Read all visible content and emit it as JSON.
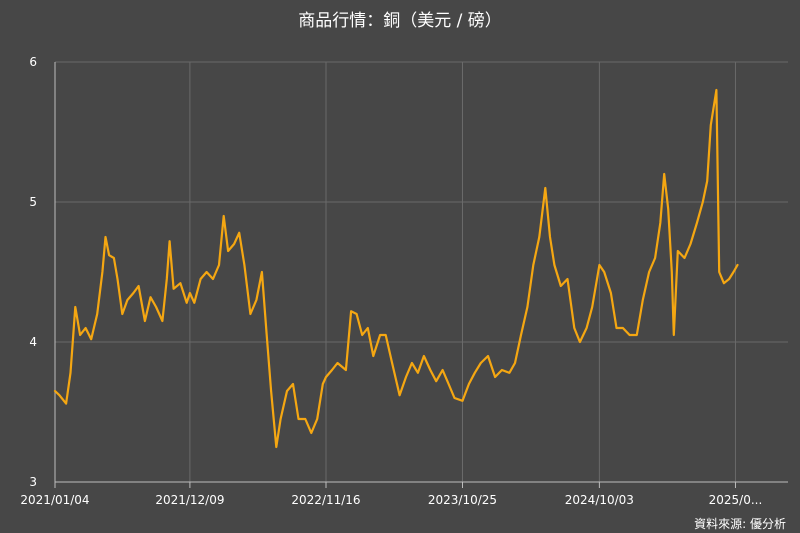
{
  "chart_data": {
    "type": "line",
    "title": "商品行情：銅（美元 / 磅）",
    "xlabel": "",
    "ylabel": "",
    "source": "資料來源: 優分析",
    "ylim": [
      3,
      6
    ],
    "yticks": [
      3,
      4,
      5,
      6
    ],
    "xticks": [
      {
        "label": "2021/01/04",
        "date": "2021-01-04"
      },
      {
        "label": "2021/12/09",
        "date": "2021-12-09"
      },
      {
        "label": "2022/11/16",
        "date": "2022-11-16"
      },
      {
        "label": "2023/10/25",
        "date": "2023-10-25"
      },
      {
        "label": "2024/10/03",
        "date": "2024-10-03"
      },
      {
        "label": "2025/0...",
        "date": "2025-09-10"
      }
    ],
    "xlim": [
      "2021-01-04",
      "2026-01-20"
    ],
    "grid": true,
    "line_color": "#f5a712",
    "series": [
      {
        "values": [
          [
            "2021-01-04",
            3.65
          ],
          [
            "2021-01-15",
            3.62
          ],
          [
            "2021-02-01",
            3.56
          ],
          [
            "2021-02-12",
            3.78
          ],
          [
            "2021-02-24",
            4.25
          ],
          [
            "2021-03-08",
            4.05
          ],
          [
            "2021-03-22",
            4.1
          ],
          [
            "2021-04-05",
            4.02
          ],
          [
            "2021-04-20",
            4.2
          ],
          [
            "2021-05-03",
            4.5
          ],
          [
            "2021-05-11",
            4.75
          ],
          [
            "2021-05-20",
            4.62
          ],
          [
            "2021-06-01",
            4.6
          ],
          [
            "2021-06-10",
            4.45
          ],
          [
            "2021-06-22",
            4.2
          ],
          [
            "2021-07-05",
            4.3
          ],
          [
            "2021-07-20",
            4.35
          ],
          [
            "2021-08-02",
            4.4
          ],
          [
            "2021-08-18",
            4.15
          ],
          [
            "2021-09-01",
            4.32
          ],
          [
            "2021-09-15",
            4.25
          ],
          [
            "2021-10-01",
            4.15
          ],
          [
            "2021-10-12",
            4.45
          ],
          [
            "2021-10-19",
            4.72
          ],
          [
            "2021-10-29",
            4.38
          ],
          [
            "2021-11-15",
            4.42
          ],
          [
            "2021-12-01",
            4.28
          ],
          [
            "2021-12-09",
            4.35
          ],
          [
            "2021-12-20",
            4.28
          ],
          [
            "2022-01-05",
            4.45
          ],
          [
            "2022-01-20",
            4.5
          ],
          [
            "2022-02-05",
            4.45
          ],
          [
            "2022-02-20",
            4.55
          ],
          [
            "2022-03-04",
            4.9
          ],
          [
            "2022-03-15",
            4.65
          ],
          [
            "2022-03-30",
            4.7
          ],
          [
            "2022-04-12",
            4.78
          ],
          [
            "2022-04-25",
            4.55
          ],
          [
            "2022-05-10",
            4.2
          ],
          [
            "2022-05-25",
            4.3
          ],
          [
            "2022-06-08",
            4.5
          ],
          [
            "2022-06-20",
            4.05
          ],
          [
            "2022-07-01",
            3.65
          ],
          [
            "2022-07-14",
            3.25
          ],
          [
            "2022-07-25",
            3.45
          ],
          [
            "2022-08-10",
            3.65
          ],
          [
            "2022-08-25",
            3.7
          ],
          [
            "2022-09-08",
            3.45
          ],
          [
            "2022-09-25",
            3.45
          ],
          [
            "2022-10-10",
            3.35
          ],
          [
            "2022-10-25",
            3.45
          ],
          [
            "2022-11-08",
            3.7
          ],
          [
            "2022-11-16",
            3.75
          ],
          [
            "2022-12-01",
            3.8
          ],
          [
            "2022-12-15",
            3.85
          ],
          [
            "2023-01-05",
            3.8
          ],
          [
            "2023-01-18",
            4.22
          ],
          [
            "2023-02-01",
            4.2
          ],
          [
            "2023-02-15",
            4.05
          ],
          [
            "2023-03-01",
            4.1
          ],
          [
            "2023-03-15",
            3.9
          ],
          [
            "2023-04-01",
            4.05
          ],
          [
            "2023-04-15",
            4.05
          ],
          [
            "2023-05-01",
            3.85
          ],
          [
            "2023-05-20",
            3.62
          ],
          [
            "2023-06-05",
            3.75
          ],
          [
            "2023-06-20",
            3.85
          ],
          [
            "2023-07-05",
            3.78
          ],
          [
            "2023-07-20",
            3.9
          ],
          [
            "2023-08-05",
            3.8
          ],
          [
            "2023-08-20",
            3.72
          ],
          [
            "2023-09-05",
            3.8
          ],
          [
            "2023-09-20",
            3.7
          ],
          [
            "2023-10-05",
            3.6
          ],
          [
            "2023-10-25",
            3.58
          ],
          [
            "2023-11-10",
            3.7
          ],
          [
            "2023-11-25",
            3.78
          ],
          [
            "2023-12-10",
            3.85
          ],
          [
            "2023-12-28",
            3.9
          ],
          [
            "2024-01-15",
            3.75
          ],
          [
            "2024-02-01",
            3.8
          ],
          [
            "2024-02-20",
            3.78
          ],
          [
            "2024-03-05",
            3.85
          ],
          [
            "2024-03-20",
            4.05
          ],
          [
            "2024-04-05",
            4.25
          ],
          [
            "2024-04-20",
            4.55
          ],
          [
            "2024-05-05",
            4.75
          ],
          [
            "2024-05-20",
            5.1
          ],
          [
            "2024-06-01",
            4.75
          ],
          [
            "2024-06-12",
            4.55
          ],
          [
            "2024-06-28",
            4.4
          ],
          [
            "2024-07-15",
            4.45
          ],
          [
            "2024-08-01",
            4.1
          ],
          [
            "2024-08-15",
            4.0
          ],
          [
            "2024-09-01",
            4.1
          ],
          [
            "2024-09-15",
            4.25
          ],
          [
            "2024-10-03",
            4.55
          ],
          [
            "2024-10-15",
            4.5
          ],
          [
            "2024-11-01",
            4.35
          ],
          [
            "2024-11-15",
            4.1
          ],
          [
            "2024-12-01",
            4.1
          ],
          [
            "2024-12-18",
            4.05
          ],
          [
            "2025-01-05",
            4.05
          ],
          [
            "2025-01-20",
            4.3
          ],
          [
            "2025-02-05",
            4.5
          ],
          [
            "2025-02-20",
            4.6
          ],
          [
            "2025-03-05",
            4.85
          ],
          [
            "2025-03-15",
            5.2
          ],
          [
            "2025-03-25",
            4.95
          ],
          [
            "2025-04-03",
            4.5
          ],
          [
            "2025-04-08",
            4.05
          ],
          [
            "2025-04-18",
            4.65
          ],
          [
            "2025-05-05",
            4.6
          ],
          [
            "2025-05-20",
            4.7
          ],
          [
            "2025-06-05",
            4.85
          ],
          [
            "2025-06-20",
            5.0
          ],
          [
            "2025-07-01",
            5.15
          ],
          [
            "2025-07-10",
            5.55
          ],
          [
            "2025-07-24",
            5.8
          ],
          [
            "2025-07-31",
            4.5
          ],
          [
            "2025-08-12",
            4.42
          ],
          [
            "2025-08-25",
            4.45
          ],
          [
            "2025-09-05",
            4.5
          ],
          [
            "2025-09-15",
            4.55
          ]
        ]
      }
    ]
  }
}
